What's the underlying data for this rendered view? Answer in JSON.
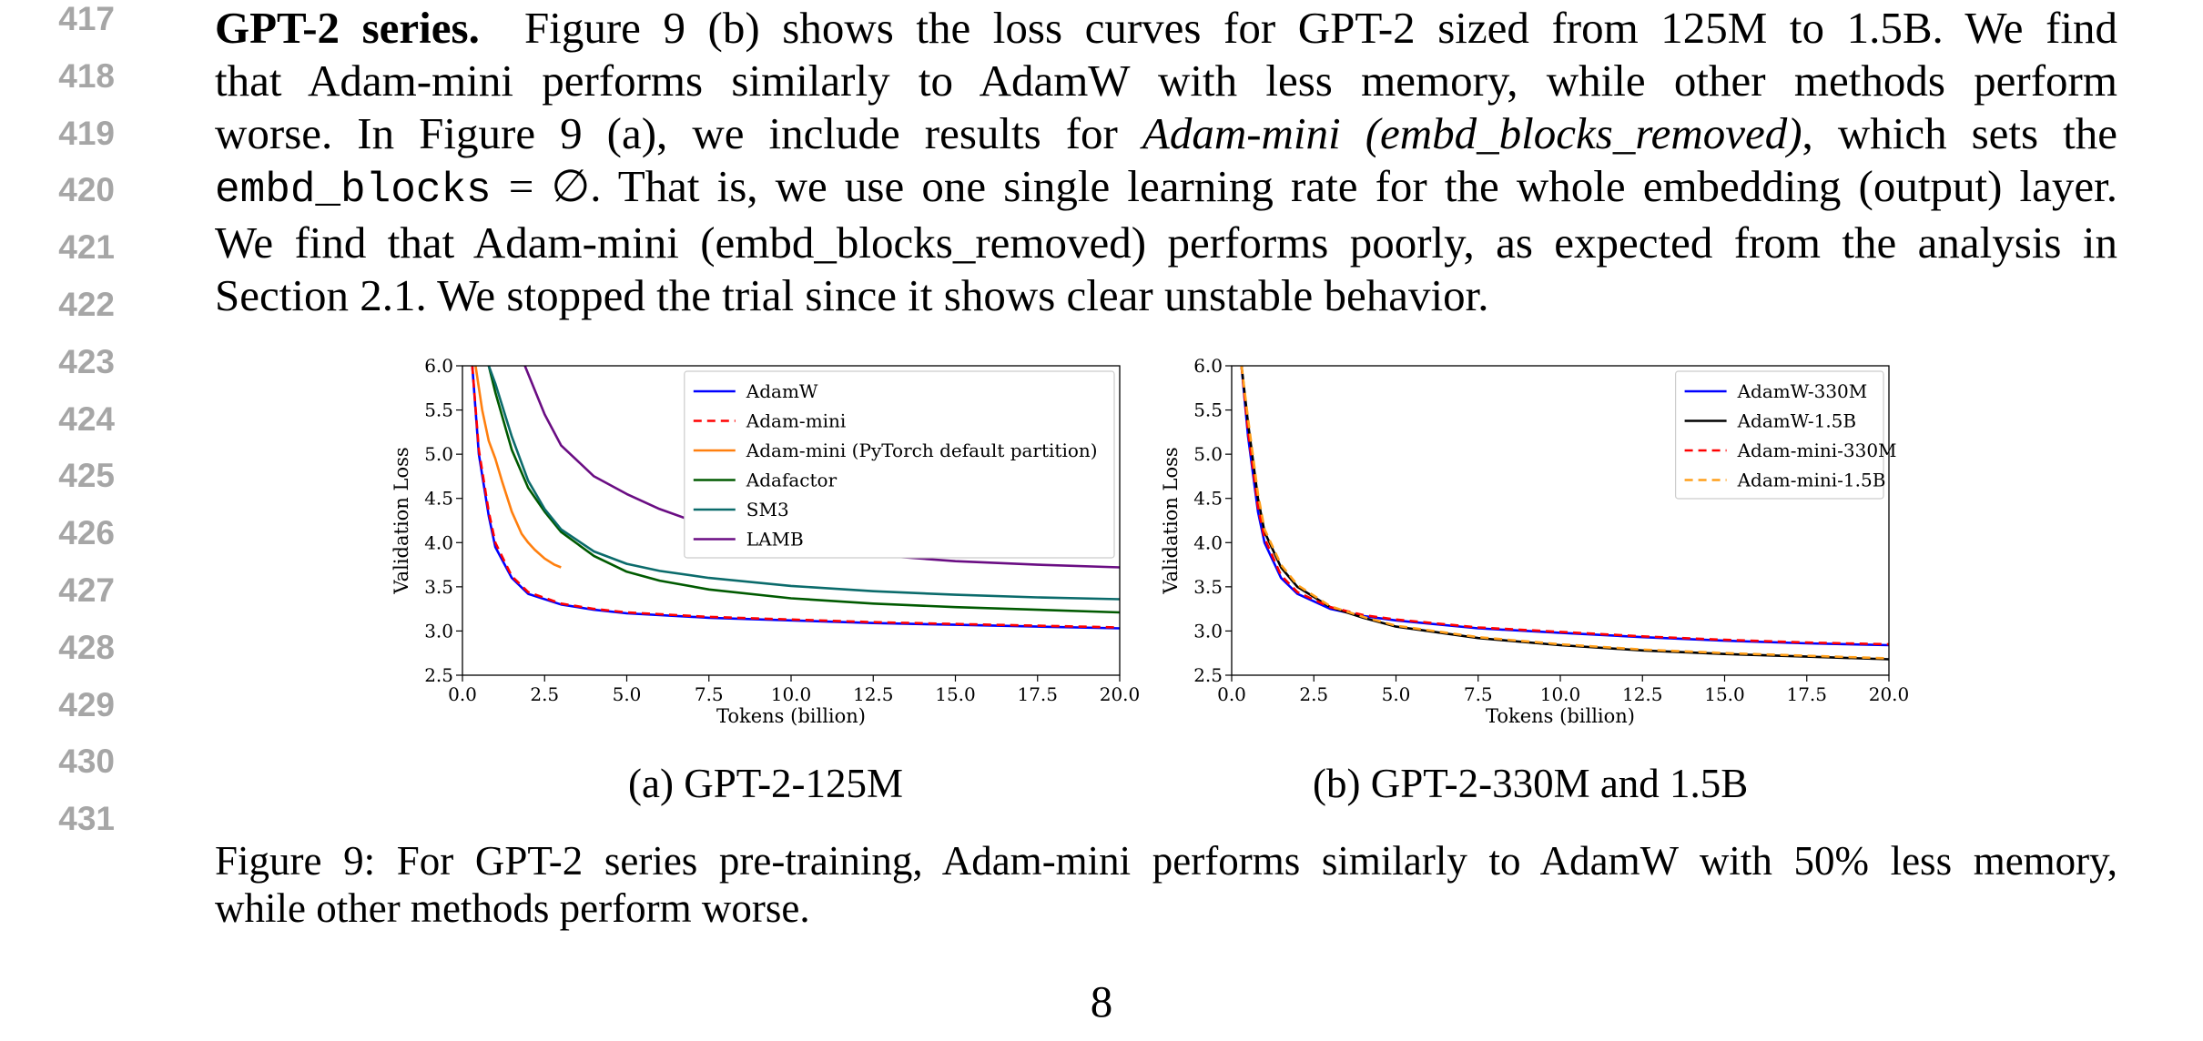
{
  "line_numbers": [
    "417",
    "418",
    "419",
    "420",
    "421",
    "422",
    "423",
    "424",
    "425",
    "426",
    "427",
    "428",
    "429",
    "430",
    "431"
  ],
  "paragraph": {
    "heading": "GPT-2 series.",
    "l1": "Figure 9 (b) shows the loss curves for GPT-2 sized from 125M to 1.5B. We find",
    "l2": "that Adam-mini performs similarly to AdamW with less memory, while other methods perform",
    "l3a": "worse. In Figure 9 (a), we include results for ",
    "l3i": "Adam-mini (embd_blocks_removed)",
    "l3b": ", which sets the",
    "l4code": "embd_blocks",
    "l4sym": " = ∅",
    "l4b": ". That is, we use one single learning rate for the whole embedding (output) layer.",
    "l5": "We find that Adam-mini (embd_blocks_removed) performs poorly, as expected from the analysis in",
    "l6": "Section 2.1. We stopped the trial since it shows clear unstable behavior."
  },
  "chart_data": [
    {
      "type": "line",
      "xlabel": "Tokens (billion)",
      "ylabel": "Validation Loss",
      "xlim": [
        0,
        20
      ],
      "ylim": [
        2.5,
        6.0
      ],
      "xticks": [
        "0.0",
        "2.5",
        "5.0",
        "7.5",
        "10.0",
        "12.5",
        "15.0",
        "17.5",
        "20.0"
      ],
      "yticks": [
        "2.5",
        "3.0",
        "3.5",
        "4.0",
        "4.5",
        "5.0",
        "5.5",
        "6.0"
      ],
      "grid": false,
      "legend": "upper-right",
      "series": [
        {
          "name": "AdamW",
          "color": "#0000ff",
          "dash": false,
          "x": [
            0.3,
            0.5,
            0.8,
            1.0,
            1.5,
            2.0,
            3.0,
            4.0,
            5.0,
            7.5,
            10.0,
            12.5,
            15.0,
            17.5,
            20.0
          ],
          "y": [
            6.0,
            5.0,
            4.3,
            3.95,
            3.6,
            3.42,
            3.3,
            3.24,
            3.2,
            3.15,
            3.12,
            3.09,
            3.07,
            3.05,
            3.03
          ]
        },
        {
          "name": "Adam-mini",
          "color": "#ff0000",
          "dash": true,
          "x": [
            0.3,
            0.5,
            0.8,
            1.0,
            1.5,
            2.0,
            3.0,
            4.0,
            5.0,
            7.5,
            10.0,
            12.5,
            15.0,
            17.5,
            20.0
          ],
          "y": [
            6.0,
            5.05,
            4.35,
            4.0,
            3.62,
            3.44,
            3.31,
            3.25,
            3.21,
            3.16,
            3.13,
            3.1,
            3.08,
            3.06,
            3.04
          ]
        },
        {
          "name": "Adam-mini (PyTorch default partition)",
          "color": "#ff7f0e",
          "dash": false,
          "x": [
            0.4,
            0.6,
            0.8,
            1.0,
            1.2,
            1.5,
            1.8,
            2.0,
            2.2,
            2.5,
            2.8,
            3.0
          ],
          "y": [
            6.0,
            5.5,
            5.15,
            4.95,
            4.7,
            4.35,
            4.1,
            4.0,
            3.92,
            3.82,
            3.75,
            3.72
          ]
        },
        {
          "name": "Adafactor",
          "color": "#005a00",
          "dash": false,
          "x": [
            0.8,
            1.0,
            1.5,
            2.0,
            2.5,
            3.0,
            4.0,
            5.0,
            6.0,
            7.5,
            10.0,
            12.5,
            15.0,
            17.5,
            20.0
          ],
          "y": [
            6.0,
            5.7,
            5.05,
            4.62,
            4.35,
            4.12,
            3.85,
            3.67,
            3.57,
            3.47,
            3.37,
            3.31,
            3.27,
            3.24,
            3.21
          ]
        },
        {
          "name": "SM3",
          "color": "#0b6b6b",
          "dash": false,
          "x": [
            0.8,
            1.0,
            1.5,
            2.0,
            2.5,
            3.0,
            4.0,
            5.0,
            6.0,
            7.5,
            10.0,
            12.5,
            15.0,
            17.5,
            20.0
          ],
          "y": [
            6.0,
            5.8,
            5.2,
            4.7,
            4.38,
            4.15,
            3.9,
            3.76,
            3.68,
            3.6,
            3.51,
            3.45,
            3.41,
            3.38,
            3.36
          ]
        },
        {
          "name": "LAMB",
          "color": "#6a0d83",
          "dash": false,
          "x": [
            1.9,
            2.5,
            3.0,
            4.0,
            5.0,
            6.0,
            7.5,
            10.0,
            12.5,
            15.0,
            17.5,
            20.0
          ],
          "y": [
            6.0,
            5.45,
            5.1,
            4.75,
            4.55,
            4.38,
            4.18,
            3.98,
            3.86,
            3.79,
            3.75,
            3.72
          ]
        }
      ]
    },
    {
      "type": "line",
      "xlabel": "Tokens (billion)",
      "ylabel": "Validation Loss",
      "xlim": [
        0,
        20
      ],
      "ylim": [
        2.5,
        6.0
      ],
      "xticks": [
        "0.0",
        "2.5",
        "5.0",
        "7.5",
        "10.0",
        "12.5",
        "15.0",
        "17.5",
        "20.0"
      ],
      "yticks": [
        "2.5",
        "3.0",
        "3.5",
        "4.0",
        "4.5",
        "5.0",
        "5.5",
        "6.0"
      ],
      "grid": false,
      "legend": "upper-right",
      "series": [
        {
          "name": "AdamW-330M",
          "color": "#0000ff",
          "dash": false,
          "x": [
            0.3,
            0.5,
            0.8,
            1.0,
            1.5,
            2.0,
            3.0,
            4.0,
            5.0,
            7.5,
            10.0,
            12.5,
            15.0,
            17.5,
            20.0
          ],
          "y": [
            6.0,
            5.2,
            4.35,
            4.0,
            3.6,
            3.42,
            3.25,
            3.17,
            3.12,
            3.03,
            2.98,
            2.93,
            2.89,
            2.86,
            2.84
          ]
        },
        {
          "name": "AdamW-1.5B",
          "color": "#000000",
          "dash": false,
          "x": [
            0.3,
            0.5,
            0.8,
            1.0,
            1.5,
            2.0,
            3.0,
            4.0,
            5.0,
            7.5,
            10.0,
            12.5,
            15.0,
            17.5,
            20.0
          ],
          "y": [
            6.0,
            5.35,
            4.5,
            4.12,
            3.72,
            3.5,
            3.27,
            3.15,
            3.05,
            2.92,
            2.84,
            2.78,
            2.74,
            2.71,
            2.68
          ]
        },
        {
          "name": "Adam-mini-330M",
          "color": "#ff0000",
          "dash": true,
          "x": [
            0.3,
            0.5,
            0.8,
            1.0,
            1.5,
            2.0,
            3.0,
            4.0,
            5.0,
            7.5,
            10.0,
            12.5,
            15.0,
            17.5,
            20.0
          ],
          "y": [
            6.0,
            5.25,
            4.4,
            4.05,
            3.63,
            3.44,
            3.27,
            3.18,
            3.13,
            3.04,
            2.99,
            2.94,
            2.9,
            2.87,
            2.85
          ]
        },
        {
          "name": "Adam-mini-1.5B",
          "color": "#ff9f1a",
          "dash": true,
          "x": [
            0.3,
            0.5,
            0.8,
            1.0,
            1.5,
            2.0,
            3.0,
            4.0,
            5.0,
            7.5,
            10.0,
            12.5,
            15.0,
            17.5,
            20.0
          ],
          "y": [
            6.0,
            5.4,
            4.55,
            4.15,
            3.75,
            3.52,
            3.28,
            3.16,
            3.06,
            2.93,
            2.85,
            2.79,
            2.75,
            2.72,
            2.69
          ]
        }
      ]
    }
  ],
  "subcaption_a": "(a)  GPT-2-125M",
  "subcaption_b": "(b)  GPT-2-330M and 1.5B",
  "caption": {
    "label": "Figure 9:",
    "l1": " For GPT-2 series pre-training, Adam-mini performs similarly to AdamW with 50% less memory,",
    "l2": "while other methods perform worse."
  },
  "page_number": "8"
}
